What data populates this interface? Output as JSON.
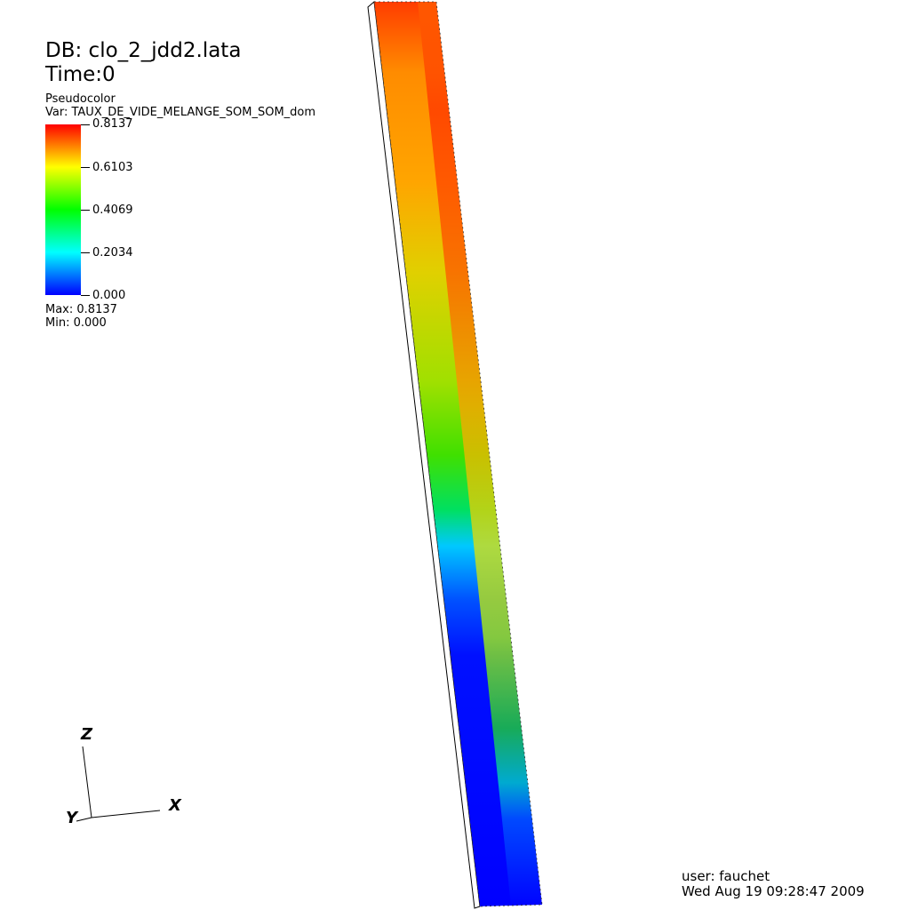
{
  "header": {
    "db": "DB: clo_2_jdd2.lata",
    "time": "Time:0"
  },
  "plot": {
    "type": "Pseudocolor",
    "variable": "Var: TAUX_DE_VIDE_MELANGE_SOM_SOM_dom"
  },
  "colorbar": {
    "ticks": [
      "0.8137",
      "0.6103",
      "0.4069",
      "0.2034",
      "0.000"
    ],
    "max": "Max:  0.8137",
    "min": "Min:  0.000",
    "colors": [
      "#ff0000",
      "#ffff00",
      "#00ff00",
      "#00ffff",
      "#0000ff"
    ]
  },
  "axes": {
    "z": "Z",
    "y": "Y",
    "x": "X"
  },
  "footer": {
    "user": "user: fauchet",
    "date": "Wed Aug 19 09:28:47 2009"
  }
}
